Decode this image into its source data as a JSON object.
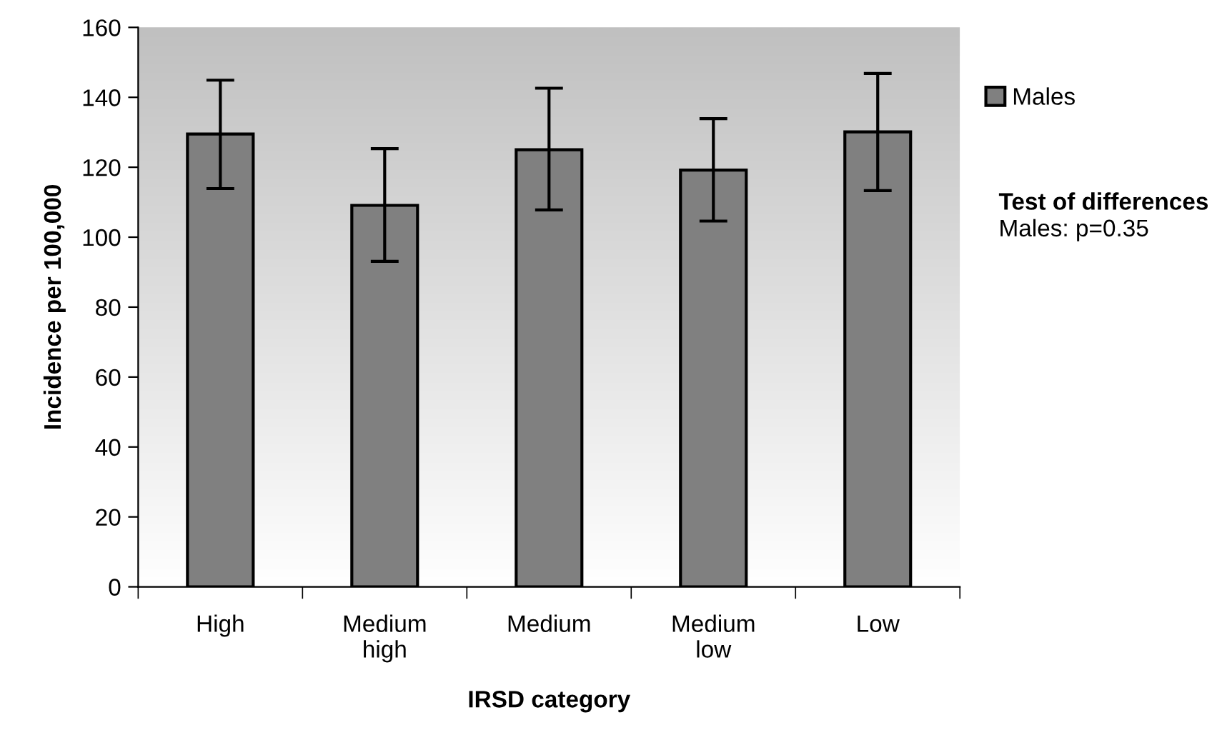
{
  "chart_data": {
    "type": "bar",
    "xlabel": "IRSD category",
    "ylabel": "Incidence per 100,000",
    "categories": [
      "High",
      "Medium high",
      "Medium",
      "Medium low",
      "Low"
    ],
    "series": [
      {
        "name": "Males",
        "color": "#808080",
        "values": [
          129.5,
          109.1,
          125.0,
          119.2,
          130.1
        ],
        "errors": [
          [
            113.9,
            144.9
          ],
          [
            93.1,
            125.3
          ],
          [
            107.8,
            142.6
          ],
          [
            104.6,
            133.9
          ],
          [
            113.3,
            146.8
          ]
        ]
      }
    ],
    "ylim": [
      0,
      160
    ],
    "yticks": [
      0,
      20,
      40,
      60,
      80,
      100,
      120,
      140,
      160
    ],
    "legend": "right",
    "grid": false,
    "annotations": [
      "Test of differences",
      "Males: p=0.35"
    ]
  }
}
